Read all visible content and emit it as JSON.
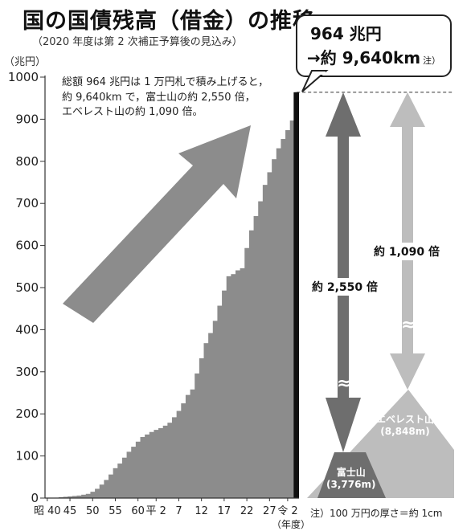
{
  "title": "国の国債残高（借金）の推移",
  "subtitle": "（2020 年度は第 2 次補正予算後の見込み）",
  "callout": {
    "line1": "964 兆円",
    "line2": "→約 9,640km",
    "note": "注）"
  },
  "description": [
    "総額 964 兆円は 1 万円札で積み上げると，",
    "約 9,640km で，富士山の約 2,550 倍，",
    "エベレスト山の約 1,090 倍。"
  ],
  "footnote": "注）100 万円の厚さ＝約 1cm",
  "ratios": {
    "fuji": "約 2,550 倍",
    "everest": "約 1,090 倍",
    "wave": "≈"
  },
  "mountains": {
    "fuji": {
      "name": "富士山",
      "height": "(3,776m)"
    },
    "everest": {
      "name": "エベレスト山",
      "height": "(8,848m)"
    }
  },
  "colors": {
    "bars": "#8c8c8c",
    "fuji_arrow": "#6e6e6e",
    "everest_arrow": "#bdbdbd",
    "fuji": "#6e6e6e",
    "everest": "#bdbdbd",
    "last_bar": "#111111"
  },
  "chart_data": {
    "type": "bar",
    "title": "国の国債残高（借金）の推移",
    "ylabel": "（兆円）",
    "xlabel": "（年度）",
    "ylim": [
      0,
      1000
    ],
    "yticks": [
      0,
      100,
      200,
      300,
      400,
      500,
      600,
      700,
      800,
      900,
      1000
    ],
    "xtick_labels": [
      {
        "index": 0,
        "label": "昭 40"
      },
      {
        "index": 5,
        "label": "45"
      },
      {
        "index": 10,
        "label": "50"
      },
      {
        "index": 15,
        "label": "55"
      },
      {
        "index": 20,
        "label": "60"
      },
      {
        "index": 24,
        "label": "平 2"
      },
      {
        "index": 29,
        "label": "7"
      },
      {
        "index": 34,
        "label": "12"
      },
      {
        "index": 39,
        "label": "17"
      },
      {
        "index": 44,
        "label": "22"
      },
      {
        "index": 49,
        "label": "27"
      },
      {
        "index": 53,
        "label": "令 2"
      }
    ],
    "values": [
      0.3,
      0.5,
      1,
      2,
      3,
      4,
      5,
      6,
      8,
      10,
      15,
      22,
      32,
      43,
      56,
      71,
      82,
      96,
      110,
      122,
      134,
      145,
      151,
      157,
      162,
      166,
      172,
      179,
      192,
      207,
      225,
      245,
      258,
      296,
      332,
      368,
      392,
      421,
      457,
      493,
      527,
      532,
      541,
      546,
      594,
      636,
      670,
      705,
      744,
      774,
      805,
      831,
      853,
      874,
      897,
      964
    ],
    "reference_line": 964
  }
}
